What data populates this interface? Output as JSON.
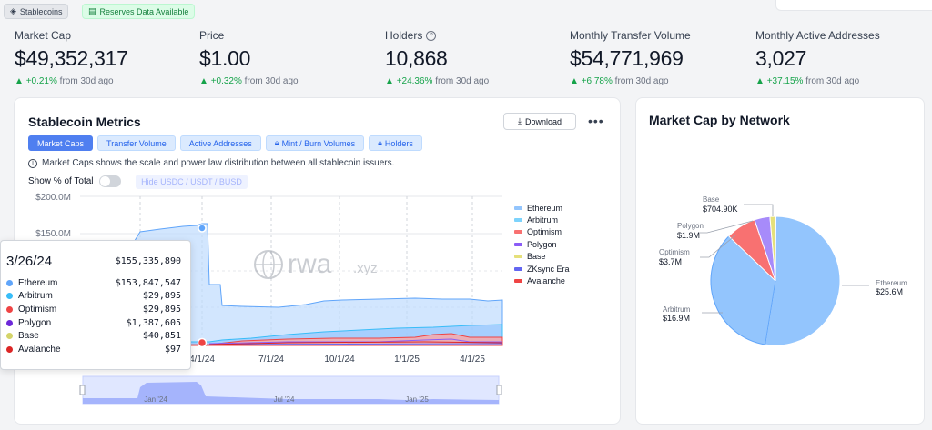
{
  "badges": {
    "stablecoins": "Stablecoins",
    "reserves": "Reserves Data Available"
  },
  "stats": [
    {
      "label": "Market Cap",
      "value": "$49,352,317",
      "change": "+0.21%",
      "suffix": "from 30d ago"
    },
    {
      "label": "Price",
      "value": "$1.00",
      "change": "+0.32%",
      "suffix": "from 30d ago"
    },
    {
      "label": "Holders",
      "value": "10,868",
      "change": "+24.36%",
      "suffix": "from 30d ago"
    },
    {
      "label": "Monthly Transfer Volume",
      "value": "$54,771,969",
      "change": "+6.78%",
      "suffix": "from 30d ago"
    },
    {
      "label": "Monthly Active Addresses",
      "value": "3,027",
      "change": "+37.15%",
      "suffix": "from 30d ago"
    }
  ],
  "metrics": {
    "title": "Stablecoin Metrics",
    "download_label": "Download",
    "more_label": "•••",
    "tabs": [
      {
        "label": "Market Caps",
        "locked": false
      },
      {
        "label": "Transfer Volume",
        "locked": false
      },
      {
        "label": "Active Addresses",
        "locked": false
      },
      {
        "label": "Mint / Burn Volumes",
        "locked": true
      },
      {
        "label": "Holders",
        "locked": true
      }
    ],
    "info": "Market Caps shows the scale and power law distribution between all stablecoin issuers.",
    "show_pct_label": "Show % of Total",
    "hide_label": "Hide USDC / USDT / BUSD",
    "watermark": "rwa",
    "watermark_suffix": ".xyz"
  },
  "tooltip": {
    "date": "3/26/24",
    "total": "$155,335,890",
    "rows": [
      {
        "name": "Ethereum",
        "value": "$153,847,547",
        "color": "#60a5fa"
      },
      {
        "name": "Arbitrum",
        "value": "$29,895",
        "color": "#38bdf8"
      },
      {
        "name": "Optimism",
        "value": "$29,895",
        "color": "#ef4444"
      },
      {
        "name": "Polygon",
        "value": "$1,387,605",
        "color": "#6d28d9"
      },
      {
        "name": "Base",
        "value": "$40,851",
        "color": "#d4d46a"
      },
      {
        "name": "Avalanche",
        "value": "$97",
        "color": "#dc2626"
      }
    ]
  },
  "network": {
    "title": "Market Cap by Network"
  },
  "chart_data": [
    {
      "type": "area",
      "yticks": [
        "$200.0M",
        "$150.0M"
      ],
      "ylim": [
        0,
        200
      ],
      "xticks": [
        "4/1/24",
        "7/1/24",
        "10/1/24",
        "1/1/25",
        "4/1/25"
      ],
      "navigator_labels": [
        "Jan '24",
        "Jul '24",
        "Jan '25"
      ],
      "grid": true,
      "legend_position": "right",
      "series": [
        {
          "name": "Ethereum",
          "color": "#93c5fd"
        },
        {
          "name": "Arbitrum",
          "color": "#7dd3fc"
        },
        {
          "name": "Optimism",
          "color": "#f87171"
        },
        {
          "name": "Polygon",
          "color": "#8b5cf6"
        },
        {
          "name": "Base",
          "color": "#e5e07a"
        },
        {
          "name": "ZKsync Era",
          "color": "#6366f1"
        },
        {
          "name": "Avalanche",
          "color": "#ef4444"
        }
      ]
    },
    {
      "type": "pie",
      "slices": [
        {
          "name": "Ethereum",
          "label": "$25.6M",
          "value": 25.6,
          "color": "#93c5fd"
        },
        {
          "name": "Arbitrum",
          "label": "$16.9M",
          "value": 16.9,
          "color": "#93c5fd"
        },
        {
          "name": "Optimism",
          "label": "$3.7M",
          "value": 3.7,
          "color": "#f87171"
        },
        {
          "name": "Polygon",
          "label": "$1.9M",
          "value": 1.9,
          "color": "#a78bfa"
        },
        {
          "name": "Base",
          "label": "$704.90K",
          "value": 0.7049,
          "color": "#e5e07a"
        }
      ]
    }
  ]
}
